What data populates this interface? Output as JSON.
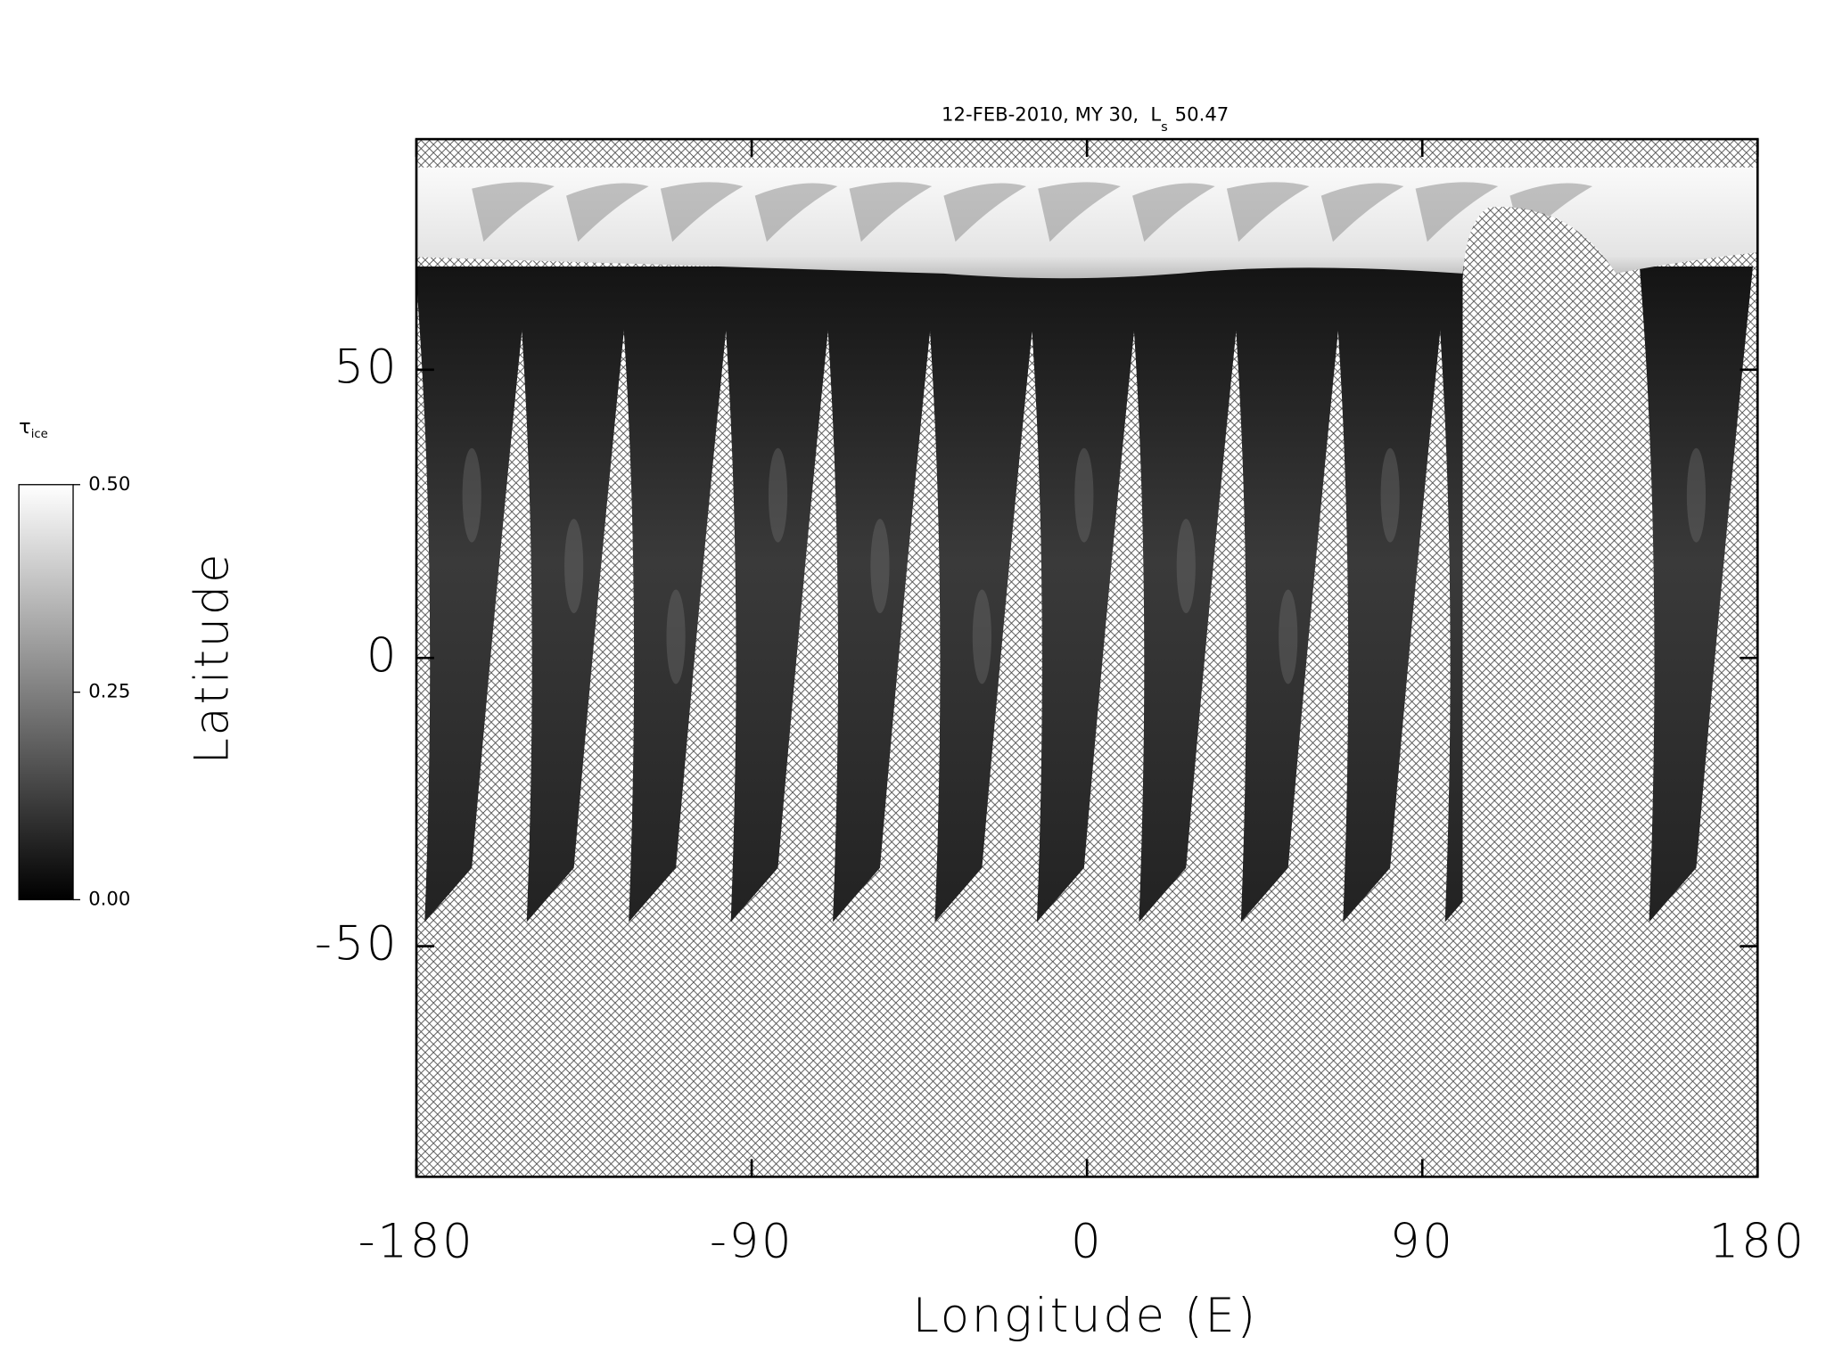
{
  "chart_data": {
    "type": "map",
    "title": "12-FEB-2010, MY 30,",
    "title_symbol": "L",
    "title_symbol_subscript": "s",
    "title_value": "50.47",
    "x_label": "Longitude (E)",
    "y_label": "Latitude",
    "xlim": [
      -180,
      180
    ],
    "ylim": [
      -90,
      90
    ],
    "xticks": [
      -180,
      -90,
      0,
      90,
      180
    ],
    "yticks": [
      -50,
      0,
      50
    ],
    "colorbar": {
      "label": "τ",
      "label_subscript": "ice",
      "lim": [
        0,
        0.5
      ],
      "ticks": [
        {
          "value": 0,
          "label": "0.00"
        },
        {
          "value": 0.25,
          "label": "0.25"
        },
        {
          "value": 0.5,
          "label": "0.50"
        }
      ],
      "colors": [
        "#000000",
        "#ffffff"
      ]
    }
  }
}
